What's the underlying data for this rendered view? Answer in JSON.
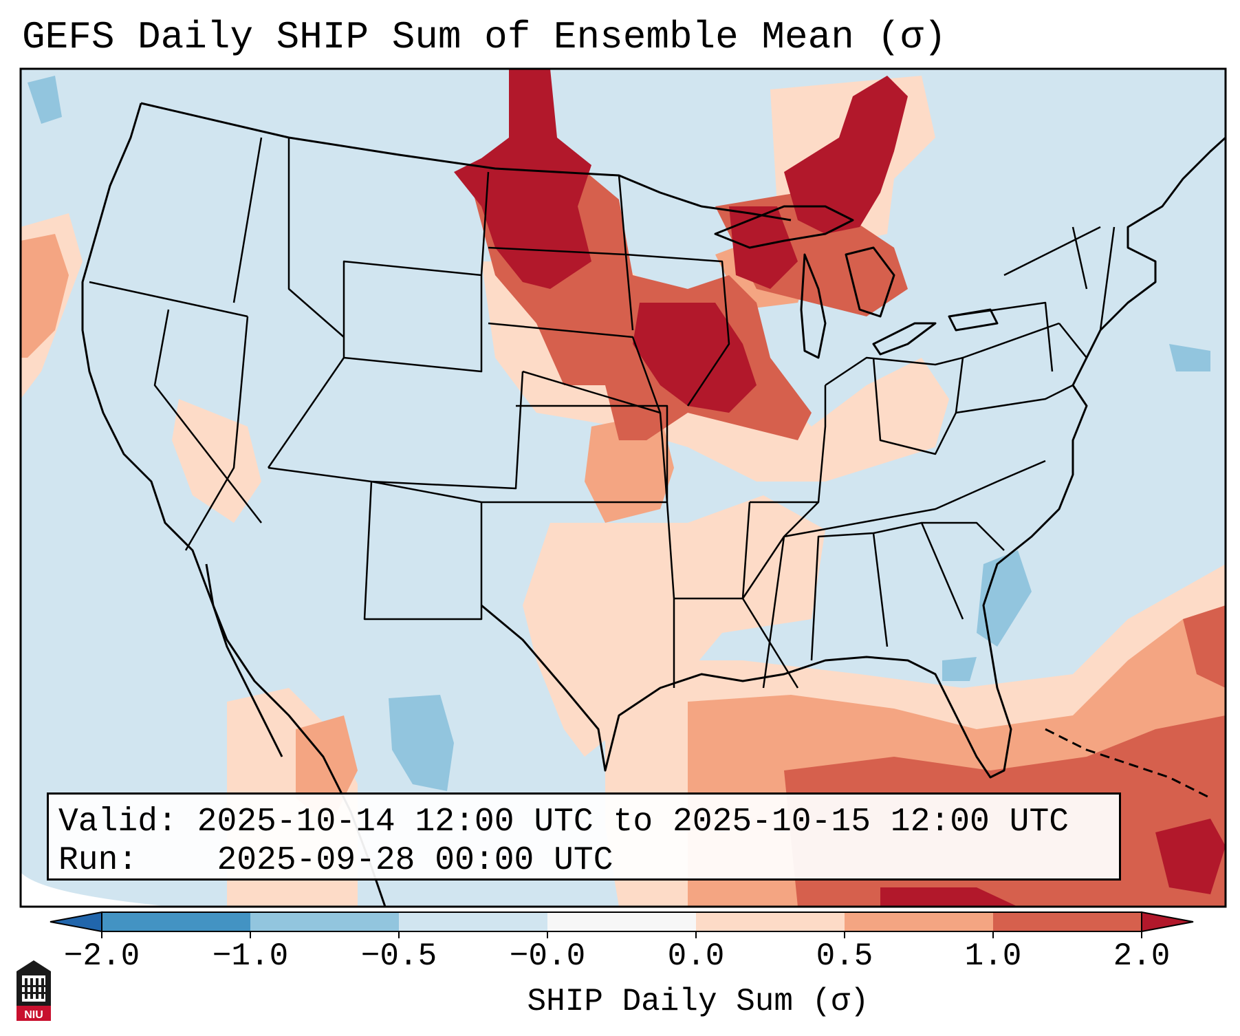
{
  "title": "GEFS Daily SHIP Sum of Ensemble Mean (σ)",
  "info": {
    "valid_label": "Valid:",
    "valid_value": "2025-10-14 12:00 UTC to 2025-10-15 12:00 UTC",
    "run_label": "Run:",
    "run_value": "2025-09-28 00:00 UTC"
  },
  "colorbar": {
    "label": "SHIP Daily Sum (σ)",
    "ticks": [
      "−2.0",
      "−1.0",
      "−0.5",
      "−0.0",
      "0.0",
      "0.5",
      "1.0",
      "2.0"
    ],
    "colors": [
      "#3f8fc4",
      "#8fc1de",
      "#cfe3ef",
      "#f2f2f2",
      "#fbd3bf",
      "#ef9a7b",
      "#d35b4f",
      "#b2182b"
    ],
    "extend": "both"
  },
  "palette": {
    "ocean_land_neutral": "#d1e5f0",
    "light_blue": "#92c5de",
    "light_red": "#fddbc7",
    "mid_red": "#f4a582",
    "strong_red": "#d6604d",
    "dark_red": "#b2182b"
  },
  "logo": {
    "text": "NIU",
    "icon": "university-building-icon"
  }
}
